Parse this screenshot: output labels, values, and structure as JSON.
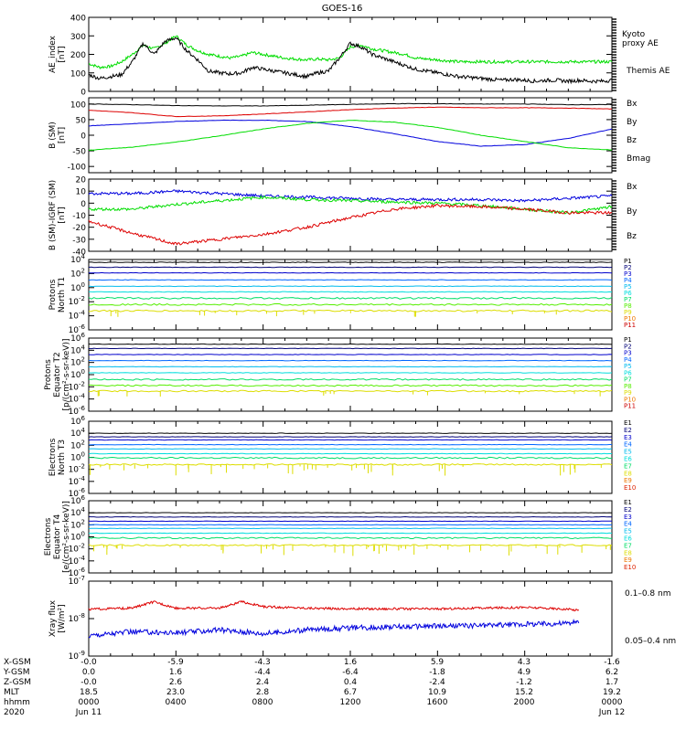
{
  "title": "GOES-16",
  "colors": {
    "black": "#000000",
    "red": "#dd0000",
    "green": "#00dd00",
    "blue": "#0000dd",
    "P": [
      "#000000",
      "#000077",
      "#0000cc",
      "#0066ff",
      "#00bbee",
      "#00dddd",
      "#00dd66",
      "#55ee00",
      "#dddd00",
      "#ee7700",
      "#cc0000"
    ],
    "E": [
      "#000000",
      "#000077",
      "#0000cc",
      "#0066ff",
      "#00bbee",
      "#00dddd",
      "#00dd66",
      "#dddd00",
      "#ee7700",
      "#dd2200",
      "#cc0000"
    ]
  },
  "chart_data": [
    {
      "type": "line",
      "panel": "ae",
      "ylabel": "AE_index [nT]",
      "ylim": [
        0,
        400
      ],
      "yticks": [
        0,
        100,
        200,
        300,
        400
      ],
      "series": [
        {
          "name": "Kyoto proxy AE",
          "color": "#00dd00",
          "x": [
            0,
            0.5,
            1,
            1.5,
            2,
            2.5,
            3,
            3.5,
            4,
            4.5,
            5,
            5.5,
            6,
            6.5,
            7,
            7.5,
            8,
            8.5,
            9,
            9.5,
            10,
            10.5,
            11,
            11.5,
            12,
            12.5,
            13,
            13.5,
            14,
            14.5,
            15,
            15.5,
            16,
            16.5,
            17,
            17.5,
            18,
            18.5,
            19,
            19.5,
            20,
            20.5,
            21,
            21.5,
            22,
            22.5,
            23,
            23.5,
            24
          ],
          "y": [
            150,
            130,
            135,
            160,
            200,
            250,
            230,
            260,
            300,
            250,
            220,
            200,
            190,
            180,
            190,
            210,
            200,
            190,
            180,
            175,
            170,
            175,
            170,
            180,
            240,
            250,
            230,
            220,
            210,
            200,
            180,
            175,
            170,
            165,
            160,
            160,
            160,
            160,
            160,
            160,
            160,
            160,
            160,
            160,
            160,
            160,
            160,
            160,
            160
          ]
        },
        {
          "name": "Themis AE",
          "color": "#000000",
          "x": [
            0,
            0.5,
            1,
            1.5,
            2,
            2.5,
            3,
            3.5,
            4,
            4.5,
            5,
            5.5,
            6,
            6.5,
            7,
            7.5,
            8,
            8.5,
            9,
            9.5,
            10,
            10.5,
            11,
            11.5,
            12,
            12.5,
            13,
            13.5,
            14,
            14.5,
            15,
            15.5,
            16,
            16.5,
            17,
            17.5,
            18,
            18.5,
            19,
            19.5,
            20,
            20.5,
            21,
            21.5,
            22,
            22.5,
            23,
            23.5,
            24
          ],
          "y": [
            90,
            70,
            80,
            90,
            160,
            260,
            200,
            270,
            290,
            220,
            170,
            110,
            100,
            95,
            100,
            130,
            120,
            110,
            100,
            90,
            80,
            100,
            110,
            180,
            260,
            240,
            200,
            180,
            160,
            140,
            120,
            110,
            100,
            90,
            80,
            75,
            70,
            65,
            60,
            65,
            60,
            55,
            60,
            60,
            55,
            60,
            55,
            55,
            60
          ]
        }
      ]
    },
    {
      "type": "line",
      "panel": "b",
      "ylabel": "B (SM) [nT]",
      "ylim": [
        -120,
        120
      ],
      "yticks": [
        -100,
        -50,
        0,
        50,
        100
      ],
      "series": [
        {
          "name": "Bx",
          "color": "#0000dd",
          "x": [
            0,
            2,
            4,
            6,
            8,
            10,
            12,
            14,
            16,
            18,
            20,
            22,
            24
          ],
          "y": [
            30,
            37,
            44,
            48,
            48,
            44,
            28,
            5,
            -20,
            -35,
            -30,
            -10,
            20
          ]
        },
        {
          "name": "By",
          "color": "#00dd00",
          "x": [
            0,
            2,
            4,
            6,
            8,
            10,
            12,
            14,
            16,
            18,
            20,
            22,
            24
          ],
          "y": [
            -48,
            -38,
            -22,
            -2,
            20,
            38,
            48,
            42,
            25,
            0,
            -20,
            -40,
            -47
          ]
        },
        {
          "name": "Bz",
          "color": "#dd0000",
          "x": [
            0,
            2,
            4,
            6,
            8,
            10,
            12,
            14,
            16,
            18,
            20,
            22,
            24
          ],
          "y": [
            80,
            72,
            60,
            62,
            68,
            75,
            82,
            87,
            90,
            88,
            88,
            87,
            84
          ]
        },
        {
          "name": "Bmag",
          "color": "#000000",
          "x": [
            0,
            2,
            4,
            6,
            8,
            10,
            12,
            14,
            16,
            18,
            20,
            22,
            24
          ],
          "y": [
            100,
            98,
            95,
            94,
            94,
            96,
            99,
            101,
            101,
            100,
            100,
            98,
            98
          ]
        }
      ]
    },
    {
      "type": "line",
      "panel": "db",
      "ylabel": "B (SM)-IGRF (SM) [nT]",
      "ylim": [
        -40,
        20
      ],
      "yticks": [
        -40,
        -30,
        -20,
        -10,
        0,
        10,
        20
      ],
      "series": [
        {
          "name": "Bx",
          "color": "#0000dd",
          "x": [
            0,
            2,
            4,
            6,
            8,
            10,
            12,
            14,
            16,
            18,
            20,
            22,
            24
          ],
          "y": [
            8,
            8,
            10,
            8,
            6,
            5,
            4,
            3,
            3,
            3,
            2,
            4,
            6
          ]
        },
        {
          "name": "By",
          "color": "#00dd00",
          "x": [
            0,
            2,
            4,
            6,
            8,
            10,
            12,
            14,
            16,
            18,
            20,
            22,
            24
          ],
          "y": [
            -5,
            -5,
            -1,
            2,
            5,
            3,
            2,
            1,
            0,
            -2,
            -5,
            -8,
            -3
          ]
        },
        {
          "name": "Bz",
          "color": "#dd0000",
          "x": [
            0,
            2,
            4,
            6,
            8,
            10,
            12,
            14,
            16,
            18,
            20,
            22,
            24
          ],
          "y": [
            -15,
            -25,
            -34,
            -30,
            -26,
            -20,
            -12,
            -5,
            -2,
            -3,
            -5,
            -8,
            -8
          ]
        }
      ]
    },
    {
      "type": "line",
      "panel": "p1",
      "log": true,
      "ylabel": "Protons North T1",
      "ylim_exp": [
        -6,
        4
      ],
      "ticks": [
        "10^4",
        "10^2",
        "10^0",
        "10^-2",
        "10^-4",
        "10^-6"
      ],
      "channels": [
        "P1",
        "P2",
        "P3",
        "P4",
        "P5",
        "P6",
        "P7",
        "P8",
        "P9",
        "P10",
        "P11"
      ],
      "levels_exp": [
        3.6,
        2.9,
        2.1,
        1.1,
        0.2,
        -0.6,
        -1.5,
        -2.4,
        -3.3
      ]
    },
    {
      "type": "line",
      "panel": "p2",
      "log": true,
      "ylabel": "Protons Equator T2 [p/(cm²-s-sr-keV)]",
      "ylim_exp": [
        -6,
        6
      ],
      "ticks": [
        "10^6",
        "10^4",
        "10^2",
        "10^0",
        "10^-2",
        "10^-4",
        "10^-6"
      ],
      "channels": [
        "P1",
        "P2",
        "P3",
        "P4",
        "P5",
        "P6",
        "P7",
        "P8",
        "P9",
        "P10",
        "P11"
      ],
      "levels_exp": [
        5.0,
        4.3,
        3.3,
        2.3,
        1.3,
        0.3,
        -0.8,
        -1.8,
        -2.7
      ]
    },
    {
      "type": "line",
      "panel": "e3",
      "log": true,
      "ylabel": "Electrons North T3",
      "ylim_exp": [
        -6,
        6
      ],
      "ticks": [
        "10^6",
        "10^4",
        "10^2",
        "10^0",
        "10^-2",
        "10^-4",
        "10^-6"
      ],
      "channels": [
        "E1",
        "E2",
        "E3",
        "E4",
        "E5",
        "E6",
        "E7",
        "E8",
        "E9",
        "E10"
      ],
      "levels_exp": [
        4.0,
        3.4,
        2.9,
        2.1,
        1.4,
        0.6,
        -0.1,
        -1.2
      ]
    },
    {
      "type": "line",
      "panel": "e4",
      "log": true,
      "ylabel": "Electrons Equator T4 [e/(cm²-s-sr-keV)]",
      "ylim_exp": [
        -6,
        6
      ],
      "ticks": [
        "10^6",
        "10^4",
        "10^2",
        "10^0",
        "10^-2",
        "10^-4",
        "10^-6"
      ],
      "channels": [
        "E1",
        "E2",
        "E3",
        "E4",
        "E5",
        "E6",
        "E7",
        "E8",
        "E9",
        "E10"
      ],
      "levels_exp": [
        4.0,
        3.3,
        2.6,
        2.0,
        1.4,
        0.6,
        -0.2,
        -1.4
      ]
    },
    {
      "type": "line",
      "panel": "xray",
      "log": true,
      "ylabel": "Xray flux [W/m²]",
      "ylim_exp": [
        -9,
        -7
      ],
      "ticks": [
        "10^-7",
        "10^-8",
        "10^-9"
      ],
      "series": [
        {
          "name": "0.1–0.8 nm",
          "color": "#dd0000",
          "x": [
            0,
            2,
            3,
            4,
            6,
            7,
            8,
            10,
            12,
            14,
            16,
            18,
            20,
            22,
            22.5
          ],
          "y_exp": [
            -7.75,
            -7.72,
            -7.55,
            -7.72,
            -7.72,
            -7.55,
            -7.68,
            -7.72,
            -7.74,
            -7.74,
            -7.74,
            -7.72,
            -7.7,
            -7.75,
            -7.78
          ]
        },
        {
          "name": "0.05–0.4 nm",
          "color": "#0000dd",
          "x": [
            0,
            2,
            4,
            6,
            8,
            10,
            12,
            14,
            16,
            18,
            20,
            22,
            22.5
          ],
          "y_exp": [
            -8.45,
            -8.35,
            -8.38,
            -8.3,
            -8.4,
            -8.3,
            -8.25,
            -8.22,
            -8.2,
            -8.18,
            -8.15,
            -8.12,
            -8.1
          ]
        }
      ]
    }
  ],
  "axis": {
    "row_labels": [
      "X-GSM",
      "Y-GSM",
      "Z-GSM",
      "MLT",
      "hhmm",
      "2020"
    ],
    "columns": [
      [
        "-0.0",
        "0.0",
        "-0.0",
        "18.5",
        "0000",
        "Jun 11"
      ],
      [
        "-5.9",
        "1.6",
        "2.6",
        "23.0",
        "0400",
        ""
      ],
      [
        "-4.3",
        "-4.4",
        "2.4",
        "2.8",
        "0800",
        ""
      ],
      [
        "1.6",
        "-6.4",
        "0.4",
        "6.7",
        "1200",
        ""
      ],
      [
        "5.9",
        "-1.8",
        "-2.4",
        "10.9",
        "1600",
        ""
      ],
      [
        "4.3",
        "4.9",
        "-1.2",
        "15.2",
        "2000",
        ""
      ],
      [
        "-1.6",
        "6.2",
        "1.7",
        "19.2",
        "0000",
        "Jun 12"
      ]
    ]
  },
  "legends": {
    "ae": [
      "Kyoto proxy AE",
      "Themis AE"
    ],
    "b": [
      "Bx",
      "By",
      "Bz",
      "Bmag"
    ],
    "db": [
      "Bx",
      "By",
      "Bz"
    ],
    "xray": [
      "0.1–0.8 nm",
      "0.05–0.4 nm"
    ]
  }
}
